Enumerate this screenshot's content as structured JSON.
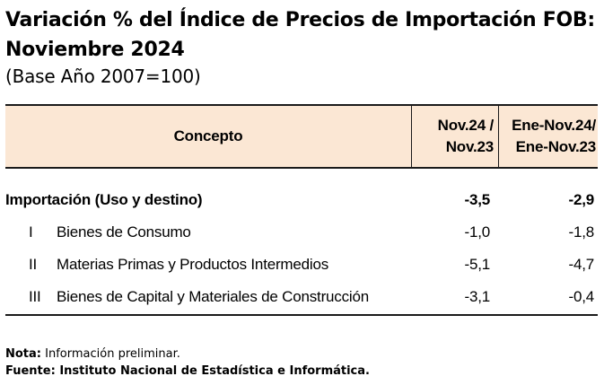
{
  "title": {
    "line1": "Variación % del Índice de Precios de Importación FOB:",
    "line2": "Noviembre 2024",
    "subtitle": "(Base Año 2007=100)"
  },
  "table": {
    "headers": {
      "concept": "Concepto",
      "col1_line1": "Nov.24 /",
      "col1_line2": "Nov.23",
      "col2_line1": "Ene-Nov.24/",
      "col2_line2": "Ene-Nov.23"
    },
    "rows": [
      {
        "roman": "",
        "label": "Importación (Uso y destino)",
        "v1": "-3,5",
        "v2": "-2,9"
      },
      {
        "roman": "I",
        "label": "Bienes de Consumo",
        "v1": "-1,0",
        "v2": "-1,8"
      },
      {
        "roman": "II",
        "label": "Materias Primas y Productos Intermedios",
        "v1": "-5,1",
        "v2": "-4,7"
      },
      {
        "roman": "III",
        "label": "Bienes de Capital y Materiales de Construcción",
        "v1": "-3,1",
        "v2": "-0,4"
      }
    ]
  },
  "notes": {
    "nota_label": "Nota:",
    "nota_text": " Información preliminar.",
    "fuente": "Fuente: Instituto Nacional de Estadística e Informática."
  },
  "colors": {
    "header_bg": "#fbe7d4",
    "rule": "#1a1a1a"
  }
}
